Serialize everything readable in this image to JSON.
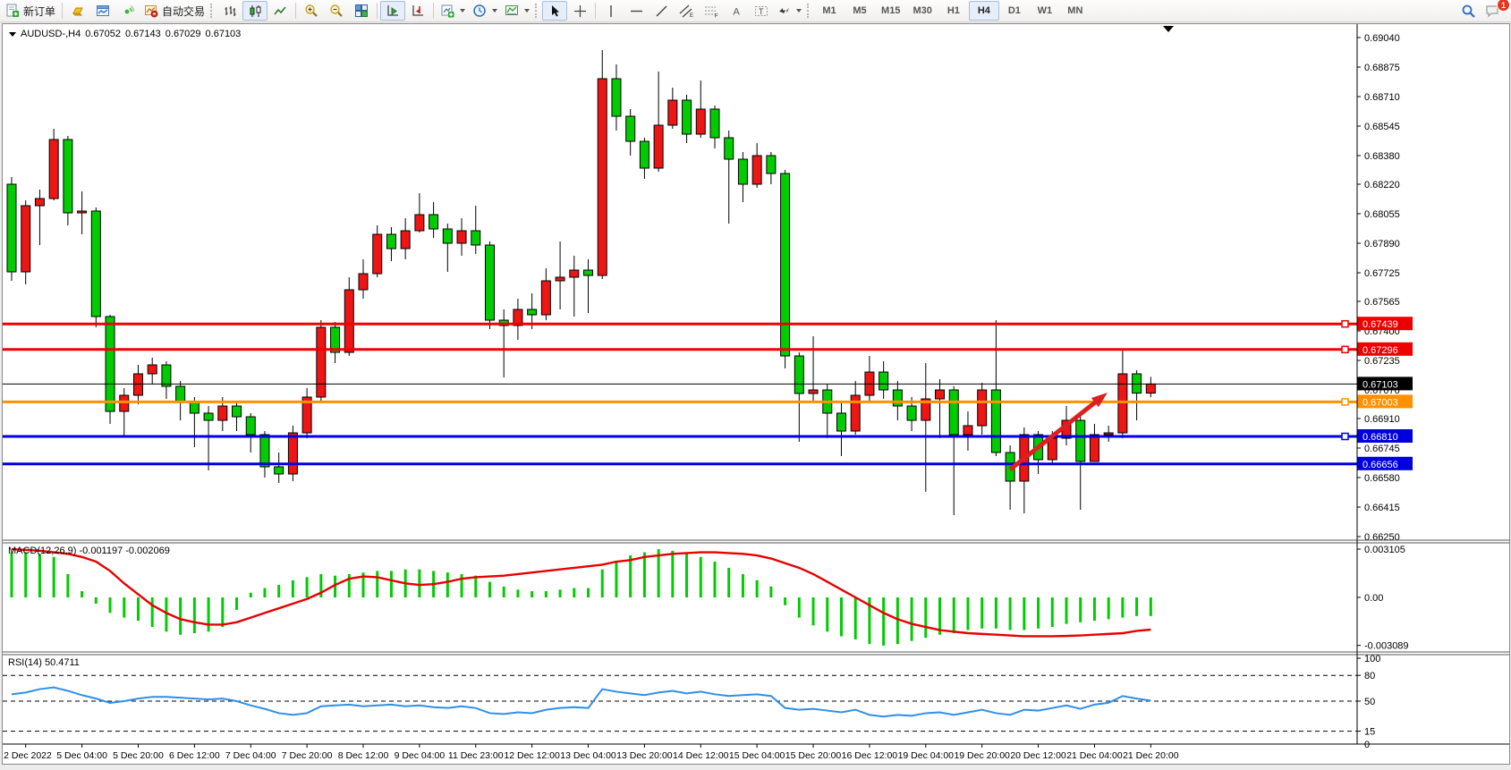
{
  "toolbar": {
    "new_order": "新订单",
    "autotrading": "自动交易",
    "timeframes": [
      "M1",
      "M5",
      "M15",
      "M30",
      "H1",
      "H4",
      "D1",
      "W1",
      "MN"
    ],
    "active_timeframe": "H4",
    "chat_badge": "1"
  },
  "chart_title": {
    "symbol": "AUDUSD-,H4",
    "open": "0.67052",
    "high": "0.67143",
    "low": "0.67029",
    "close": "0.67103"
  },
  "indicators": {
    "macd_name": "MACD(12,26,9)",
    "macd_values": "-0.001197 -0.002069",
    "rsi_name": "RSI(14)",
    "rsi_value": "50.4711"
  },
  "chart_data": [
    {
      "type": "candlestick",
      "symbol": "AUDUSD",
      "timeframe": "H4",
      "up_color": "#ee1515",
      "down_color": "#00cc00",
      "ylim": [
        0.6625,
        0.6904
      ],
      "y_ticks": [
        "0.69040",
        "0.68875",
        "0.68710",
        "0.68545",
        "0.68380",
        "0.68220",
        "0.68055",
        "0.67890",
        "0.67725",
        "0.67565",
        "0.67400",
        "0.67235",
        "0.67070",
        "0.66910",
        "0.66745",
        "0.66580",
        "0.66415",
        "0.66250"
      ],
      "x_labels": [
        "2 Dec 2022",
        "5 Dec 04:00",
        "5 Dec 20:00",
        "6 Dec 12:00",
        "7 Dec 04:00",
        "7 Dec 20:00",
        "8 Dec 12:00",
        "9 Dec 04:00",
        "11 Dec 23:00",
        "12 Dec 12:00",
        "13 Dec 04:00",
        "13 Dec 20:00",
        "14 Dec 12:00",
        "15 Dec 04:00",
        "15 Dec 20:00",
        "16 Dec 12:00",
        "19 Dec 04:00",
        "19 Dec 20:00",
        "20 Dec 12:00",
        "21 Dec 04:00",
        "21 Dec 20:00"
      ],
      "hlines": [
        {
          "price": 0.67439,
          "label": "0.67439",
          "color": "#ee0000",
          "width": 3,
          "handle": true
        },
        {
          "price": 0.67296,
          "label": "0.67296",
          "color": "#ee0000",
          "width": 3,
          "handle": true
        },
        {
          "price": 0.67103,
          "label": "0.67103",
          "color": "#000000",
          "width": 1,
          "handle": false
        },
        {
          "price": 0.67003,
          "label": "0.67003",
          "color": "#ff9000",
          "width": 3,
          "handle": true
        },
        {
          "price": 0.6681,
          "label": "0.66810",
          "color": "#0000dd",
          "width": 3,
          "handle": true
        },
        {
          "price": 0.66656,
          "label": "0.66656",
          "color": "#0000dd",
          "width": 3,
          "handle": false
        }
      ],
      "candles": [
        [
          0.6822,
          0.6826,
          0.6768,
          0.6773
        ],
        [
          0.6773,
          0.6813,
          0.6766,
          0.681
        ],
        [
          0.681,
          0.6819,
          0.6788,
          0.6814
        ],
        [
          0.6814,
          0.6853,
          0.6813,
          0.6847
        ],
        [
          0.6847,
          0.6849,
          0.6799,
          0.6806
        ],
        [
          0.6806,
          0.6818,
          0.6794,
          0.6807
        ],
        [
          0.6807,
          0.6809,
          0.6742,
          0.6748
        ],
        [
          0.6748,
          0.6749,
          0.6688,
          0.6695
        ],
        [
          0.6695,
          0.6708,
          0.6681,
          0.6704
        ],
        [
          0.6704,
          0.6721,
          0.6699,
          0.6716
        ],
        [
          0.6716,
          0.6725,
          0.671,
          0.6721
        ],
        [
          0.6721,
          0.6723,
          0.6702,
          0.6709
        ],
        [
          0.6709,
          0.6712,
          0.669,
          0.67
        ],
        [
          0.67,
          0.6703,
          0.6675,
          0.6694
        ],
        [
          0.6694,
          0.6698,
          0.6662,
          0.669
        ],
        [
          0.669,
          0.6703,
          0.6684,
          0.6698
        ],
        [
          0.6698,
          0.67,
          0.6684,
          0.6692
        ],
        [
          0.6692,
          0.6694,
          0.6672,
          0.6682
        ],
        [
          0.6682,
          0.6684,
          0.6658,
          0.6664
        ],
        [
          0.6664,
          0.6672,
          0.6655,
          0.666
        ],
        [
          0.666,
          0.6687,
          0.6656,
          0.6683
        ],
        [
          0.6683,
          0.6708,
          0.668,
          0.6703
        ],
        [
          0.6703,
          0.6746,
          0.67,
          0.6742
        ],
        [
          0.6742,
          0.6745,
          0.6722,
          0.6728
        ],
        [
          0.6728,
          0.677,
          0.6726,
          0.6763
        ],
        [
          0.6763,
          0.678,
          0.6758,
          0.6772
        ],
        [
          0.6772,
          0.6799,
          0.677,
          0.6794
        ],
        [
          0.6794,
          0.6798,
          0.6779,
          0.6786
        ],
        [
          0.6786,
          0.6803,
          0.678,
          0.6796
        ],
        [
          0.6796,
          0.6817,
          0.6795,
          0.6805
        ],
        [
          0.6805,
          0.6812,
          0.6792,
          0.6797
        ],
        [
          0.6797,
          0.68,
          0.6773,
          0.6789
        ],
        [
          0.6789,
          0.6803,
          0.6782,
          0.6796
        ],
        [
          0.6796,
          0.681,
          0.6783,
          0.6788
        ],
        [
          0.6788,
          0.679,
          0.6741,
          0.6746
        ],
        [
          0.6746,
          0.6752,
          0.6714,
          0.6743
        ],
        [
          0.6743,
          0.6758,
          0.6735,
          0.6752
        ],
        [
          0.6752,
          0.6761,
          0.6741,
          0.6749
        ],
        [
          0.6749,
          0.6775,
          0.6746,
          0.6768
        ],
        [
          0.6768,
          0.679,
          0.6752,
          0.677
        ],
        [
          0.677,
          0.6782,
          0.6748,
          0.6774
        ],
        [
          0.6774,
          0.678,
          0.675,
          0.6771
        ],
        [
          0.6771,
          0.6897,
          0.6769,
          0.6881
        ],
        [
          0.6881,
          0.6889,
          0.6852,
          0.686
        ],
        [
          0.686,
          0.6864,
          0.6838,
          0.6846
        ],
        [
          0.6846,
          0.6848,
          0.6825,
          0.6831
        ],
        [
          0.6831,
          0.6885,
          0.6829,
          0.6855
        ],
        [
          0.6855,
          0.6876,
          0.6853,
          0.6869
        ],
        [
          0.6869,
          0.6872,
          0.6845,
          0.685
        ],
        [
          0.685,
          0.688,
          0.6848,
          0.6864
        ],
        [
          0.6864,
          0.6866,
          0.6842,
          0.6848
        ],
        [
          0.6848,
          0.6852,
          0.68,
          0.6836
        ],
        [
          0.6836,
          0.684,
          0.6812,
          0.6822
        ],
        [
          0.6822,
          0.6845,
          0.682,
          0.6838
        ],
        [
          0.6838,
          0.684,
          0.6822,
          0.6828
        ],
        [
          0.6828,
          0.683,
          0.6719,
          0.6726
        ],
        [
          0.6726,
          0.6728,
          0.6678,
          0.6705
        ],
        [
          0.6705,
          0.6737,
          0.6701,
          0.6707
        ],
        [
          0.6707,
          0.671,
          0.668,
          0.6694
        ],
        [
          0.6694,
          0.67,
          0.667,
          0.6684
        ],
        [
          0.6684,
          0.6712,
          0.6682,
          0.6704
        ],
        [
          0.6704,
          0.6726,
          0.67,
          0.6717
        ],
        [
          0.6717,
          0.6723,
          0.6702,
          0.6707
        ],
        [
          0.6707,
          0.6712,
          0.669,
          0.6698
        ],
        [
          0.6698,
          0.6703,
          0.6684,
          0.669
        ],
        [
          0.669,
          0.6722,
          0.665,
          0.6702
        ],
        [
          0.6702,
          0.6713,
          0.668,
          0.6707
        ],
        [
          0.6707,
          0.6709,
          0.6637,
          0.6682
        ],
        [
          0.6682,
          0.6695,
          0.6673,
          0.6687
        ],
        [
          0.6687,
          0.6711,
          0.6682,
          0.6707
        ],
        [
          0.6707,
          0.6746,
          0.667,
          0.6672
        ],
        [
          0.6672,
          0.6676,
          0.664,
          0.6656
        ],
        [
          0.6656,
          0.6686,
          0.6638,
          0.6682
        ],
        [
          0.6682,
          0.6684,
          0.666,
          0.6668
        ],
        [
          0.6668,
          0.6684,
          0.6665,
          0.668
        ],
        [
          0.668,
          0.6698,
          0.6676,
          0.669
        ],
        [
          0.669,
          0.6692,
          0.664,
          0.6667
        ],
        [
          0.6667,
          0.6688,
          0.6667,
          0.6682
        ],
        [
          0.6682,
          0.6687,
          0.6678,
          0.6683
        ],
        [
          0.6683,
          0.673,
          0.668,
          0.6716
        ],
        [
          0.6716,
          0.6718,
          0.669,
          0.67052
        ],
        [
          0.67052,
          0.67143,
          0.67029,
          0.67103
        ]
      ],
      "arrow": {
        "from": [
          1126,
          498
        ],
        "to": [
          1235,
          412
        ],
        "color": "#dd1f1f"
      },
      "shift_marker_x": 1303
    },
    {
      "type": "bar",
      "name": "MACD(12,26,9)",
      "current_values": "-0.001197 -0.002069",
      "bar_color": "#00cc00",
      "signal_color": "#e80000",
      "y_ticks": [
        [
          "0.003105",
          0.003105
        ],
        [
          "0.00",
          0
        ],
        [
          "-0.003089",
          -0.003089
        ]
      ],
      "values": [
        0.0029,
        0.0029,
        0.0028,
        0.0026,
        0.0015,
        0.0004,
        -0.0004,
        -0.001,
        -0.0013,
        -0.0015,
        -0.0019,
        -0.0022,
        -0.0024,
        -0.0023,
        -0.0022,
        -0.0019,
        -0.0008,
        0.0003,
        0.0006,
        0.0008,
        0.0011,
        0.0013,
        0.0015,
        0.0014,
        0.0015,
        0.0016,
        0.0017,
        0.0017,
        0.0018,
        0.0018,
        0.0017,
        0.0016,
        0.0015,
        0.0014,
        0.001,
        0.0007,
        0.0005,
        0.0004,
        0.0004,
        0.0005,
        0.0006,
        0.0006,
        0.0018,
        0.0023,
        0.0027,
        0.0029,
        0.0031,
        0.003,
        0.0028,
        0.0026,
        0.0023,
        0.0019,
        0.0015,
        0.0011,
        0.0007,
        -0.0005,
        -0.0013,
        -0.0018,
        -0.0022,
        -0.0025,
        -0.0027,
        -0.003,
        -0.0031,
        -0.003,
        -0.0028,
        -0.0026,
        -0.0024,
        -0.0023,
        -0.0021,
        -0.002,
        -0.002,
        -0.0021,
        -0.0021,
        -0.002,
        -0.0019,
        -0.0017,
        -0.0016,
        -0.0015,
        -0.0014,
        -0.0013,
        -0.0012,
        -0.0012
      ],
      "signal": [
        0.0031,
        0.00305,
        0.003,
        0.0029,
        0.0028,
        0.0026,
        0.0023,
        0.0017,
        0.0009,
        0.0002,
        -0.0005,
        -0.001,
        -0.0014,
        -0.0016,
        -0.00175,
        -0.00175,
        -0.0016,
        -0.0013,
        -0.001,
        -0.0007,
        -0.0004,
        -0.0001,
        0.0003,
        0.0008,
        0.0012,
        0.00135,
        0.0013,
        0.0011,
        0.0009,
        0.0008,
        0.00085,
        0.001,
        0.0012,
        0.0013,
        0.00135,
        0.0014,
        0.0015,
        0.0016,
        0.0017,
        0.0018,
        0.0019,
        0.002,
        0.0021,
        0.0023,
        0.0024,
        0.0026,
        0.0027,
        0.0028,
        0.00285,
        0.0029,
        0.0029,
        0.00285,
        0.0028,
        0.0027,
        0.0025,
        0.0022,
        0.0019,
        0.0015,
        0.001,
        0.0005,
        0.0,
        -0.0005,
        -0.001,
        -0.0014,
        -0.0017,
        -0.0019,
        -0.0021,
        -0.0022,
        -0.0023,
        -0.00235,
        -0.0024,
        -0.00245,
        -0.0025,
        -0.0025,
        -0.0025,
        -0.00248,
        -0.00245,
        -0.0024,
        -0.00235,
        -0.0023,
        -0.00215,
        -0.00207
      ]
    },
    {
      "type": "line",
      "name": "RSI(14)",
      "current_value": "50.4711",
      "color": "#2f8fe8",
      "levels": [
        80,
        50,
        15
      ],
      "y_ticks": [
        [
          "100",
          100
        ],
        [
          "80",
          80
        ],
        [
          "50",
          50
        ],
        [
          "15",
          15
        ],
        [
          "0",
          0
        ]
      ],
      "values": [
        58,
        60,
        64,
        66,
        62,
        57,
        53,
        48,
        50,
        53,
        55,
        55,
        54,
        53,
        52,
        53,
        50,
        45,
        41,
        36,
        34,
        36,
        44,
        45,
        46,
        44,
        45,
        46,
        44,
        45,
        43,
        42,
        44,
        42,
        36,
        35,
        37,
        36,
        40,
        42,
        43,
        42,
        64,
        61,
        59,
        57,
        60,
        62,
        59,
        61,
        58,
        56,
        57,
        58,
        56,
        42,
        40,
        41,
        39,
        37,
        40,
        34,
        32,
        34,
        33,
        36,
        37,
        34,
        37,
        40,
        36,
        34,
        40,
        39,
        42,
        45,
        41,
        46,
        48,
        56,
        53,
        50.4711
      ]
    }
  ]
}
